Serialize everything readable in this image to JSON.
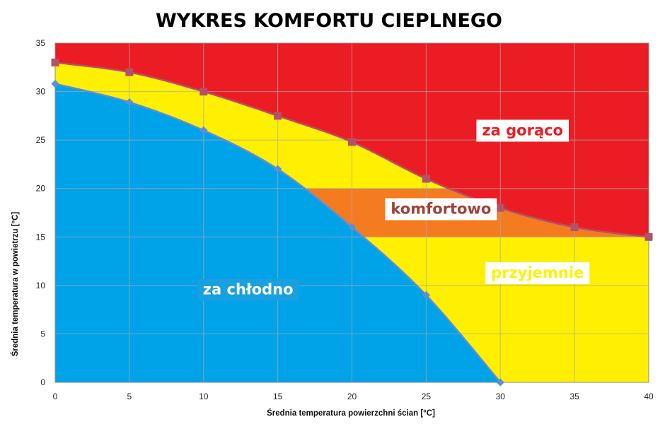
{
  "title": "WYKRES KOMFORTU CIEPLNEGO",
  "chart_data": {
    "type": "area",
    "title": "WYKRES KOMFORTU CIEPLNEGO",
    "xlabel": "Średnia temperatura powierzchni ścian [°C]",
    "ylabel": "Średnia temperatura w powietrzu [°C]",
    "xlim": [
      0,
      40
    ],
    "ylim": [
      0,
      35
    ],
    "x_ticks": [
      "0",
      "5",
      "10",
      "15",
      "20",
      "25",
      "30",
      "35",
      "40"
    ],
    "y_ticks": [
      "0",
      "5",
      "10",
      "15",
      "20",
      "25",
      "30",
      "35"
    ],
    "grid": true,
    "series": [
      {
        "x": [
          0,
          5,
          10,
          15,
          20,
          25,
          30
        ],
        "values": [
          30.8,
          28.9,
          26,
          22,
          16,
          9,
          0
        ]
      },
      {
        "x": [
          0,
          5,
          10,
          15,
          20,
          25,
          30,
          35,
          40
        ],
        "values": [
          33,
          32,
          30,
          27.5,
          24.8,
          21,
          18,
          16,
          15
        ]
      }
    ],
    "comfort_band": {
      "y_from": 15,
      "y_to": 20
    },
    "regions": [
      {
        "label": "za gorąco",
        "color": "#ec1c24",
        "text_color": "#ec1c24",
        "box": "#ffffff"
      },
      {
        "label": "komfortowo",
        "color": "#f47b20",
        "text_color": "#a0413a",
        "box": "#ffffff"
      },
      {
        "label": "przyjemnie",
        "color": "#ffef00",
        "text_color": "#fff200",
        "box": "#ffffff"
      },
      {
        "label": "za chłodno",
        "color": "#00a2e8",
        "text_color": "#ffffff",
        "box": "#1aa0e0"
      }
    ],
    "colors": {
      "cold_line": "#5b8fd8",
      "hot_line": "#b3506a",
      "grid": "#a9a9a9"
    }
  }
}
